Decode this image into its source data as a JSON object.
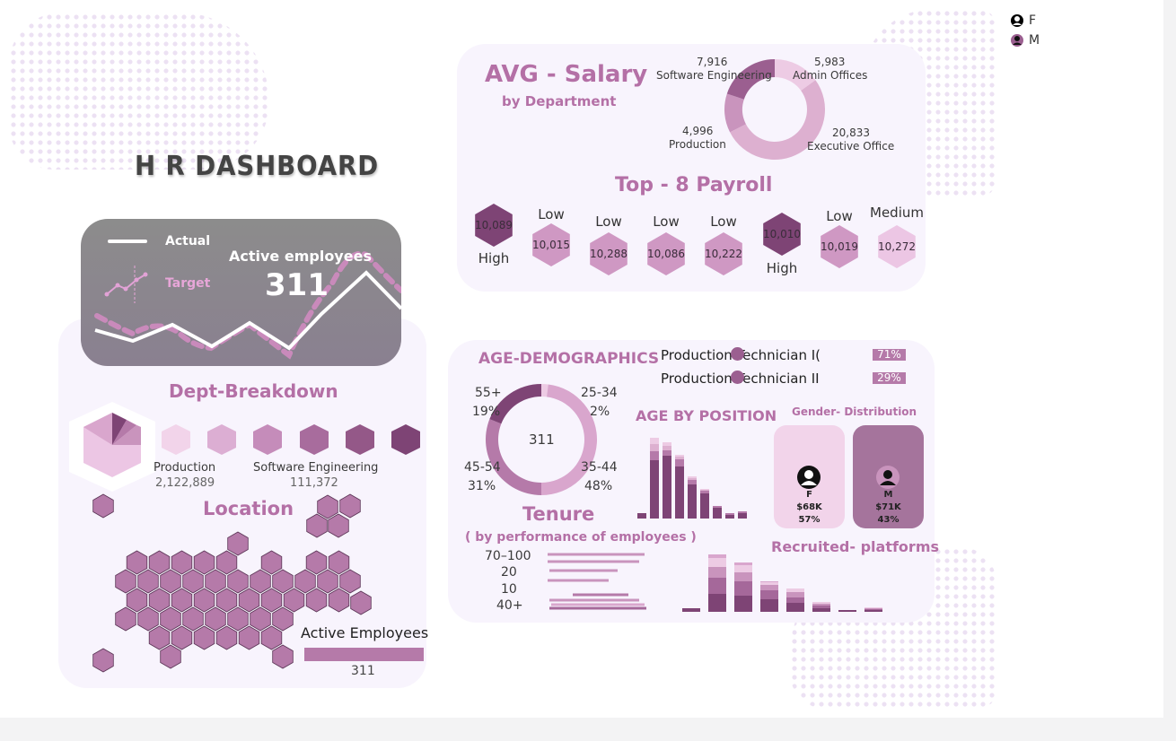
{
  "title": "H R DASHBOARD",
  "legend": {
    "items": [
      {
        "label": "F"
      },
      {
        "label": "M"
      }
    ]
  },
  "kpi": {
    "actual_label": "Actual",
    "target_label": "Target",
    "title": "Active employees",
    "value": "311"
  },
  "salary": {
    "title": "AVG - Salary",
    "subtitle": "by Department",
    "chart_data": {
      "type": "pie",
      "title": "AVG - Salary",
      "categories": [
        "Admin Offices",
        "Executive Office",
        "Production",
        "Software Engineering"
      ],
      "values": [
        5983,
        20833,
        4996,
        7916
      ],
      "value_labels": [
        "5,983",
        "20,833",
        "4,996",
        "7,916"
      ],
      "colors": [
        "#edcbe4",
        "#ddb0d0",
        "#c994bd",
        "#9b5f90"
      ]
    }
  },
  "payroll": {
    "title": "Top - 8 Payroll",
    "items": [
      {
        "value": "10,089",
        "level": "High",
        "color": "#7e4475"
      },
      {
        "value": "10,015",
        "level": "Low",
        "color": "#cf98c3"
      },
      {
        "value": "10,288",
        "level": "Low",
        "color": "#cf98c3"
      },
      {
        "value": "10,086",
        "level": "Low",
        "color": "#cf98c3"
      },
      {
        "value": "10,222",
        "level": "Low",
        "color": "#cf98c3"
      },
      {
        "value": "10,010",
        "level": "High",
        "color": "#7e4475"
      },
      {
        "value": "10,019",
        "level": "Low",
        "color": "#cf98c3"
      },
      {
        "value": "10,272",
        "level": "Medium",
        "color": "#ecc6e4"
      }
    ]
  },
  "dept": {
    "title": "Dept-Breakdown",
    "labels": [
      {
        "name": "Production",
        "value": "2,122,889"
      },
      {
        "name": "Software Engineering",
        "value": "111,372"
      }
    ]
  },
  "location": {
    "title": "Location",
    "bar_title": "Active Employees",
    "bar_value": "311"
  },
  "age": {
    "title": "AGE-DEMOGRAPHICS",
    "center": "311",
    "chart_data": {
      "type": "pie",
      "title": "AGE-DEMOGRAPHICS",
      "categories": [
        "25-34",
        "35-44",
        "45-54",
        "55+"
      ],
      "values": [
        2,
        48,
        31,
        19
      ],
      "colors": [
        "#edcbe4",
        "#d9a6cd",
        "#b57aa9",
        "#7e4475"
      ]
    },
    "labels": [
      {
        "name": "25-34",
        "pct": "2%"
      },
      {
        "name": "35-44",
        "pct": "48%"
      },
      {
        "name": "45-54",
        "pct": "31%"
      },
      {
        "name": "55+",
        "pct": "19%"
      }
    ]
  },
  "position": {
    "title": "AGE BY POSITION",
    "rows": [
      {
        "name": "Production Technician I(",
        "pct": "71%"
      },
      {
        "name": "Production Technician II",
        "pct": "29%"
      }
    ],
    "chart_data": {
      "type": "bar",
      "title": "AGE BY POSITION",
      "series": [
        {
          "values": [
            6,
            65,
            70,
            58,
            38,
            28,
            12,
            4,
            6
          ],
          "color": "#7e4475"
        },
        {
          "values": [
            0,
            10,
            6,
            8,
            5,
            3,
            2,
            2,
            2
          ],
          "color": "#b57aa9"
        },
        {
          "values": [
            0,
            8,
            5,
            3,
            2,
            1,
            0,
            0,
            0
          ],
          "color": "#ddb0d0"
        },
        {
          "values": [
            0,
            7,
            4,
            2,
            2,
            1,
            0,
            0,
            0
          ],
          "color": "#edcbe4"
        }
      ]
    }
  },
  "gender": {
    "title": "Gender- Distribution",
    "cards": [
      {
        "label": "F",
        "salary": "$68K",
        "pct": "57%"
      },
      {
        "label": "M",
        "salary": "$71K",
        "pct": "43%"
      }
    ]
  },
  "tenure": {
    "title": "Tenure",
    "subtitle": "( by performance of employees )",
    "labels": [
      "70–100",
      "20",
      "10",
      "40+"
    ]
  },
  "recruited": {
    "title": "Recruited- platforms",
    "chart_data": {
      "type": "bar",
      "title": "Recruited- platforms",
      "series": [
        {
          "values": [
            4,
            20,
            18,
            14,
            10,
            4,
            2,
            2
          ],
          "color": "#7e4475"
        },
        {
          "values": [
            0,
            18,
            16,
            10,
            6,
            3,
            0,
            1
          ],
          "color": "#a5689a"
        },
        {
          "values": [
            0,
            12,
            10,
            6,
            6,
            2,
            0,
            1
          ],
          "color": "#c994bd"
        },
        {
          "values": [
            0,
            10,
            8,
            3,
            4,
            2,
            0,
            1
          ],
          "color": "#edcbe4"
        },
        {
          "values": [
            0,
            4,
            3,
            1,
            0,
            0,
            0,
            0
          ],
          "color": "#d9a6cd"
        }
      ]
    }
  }
}
